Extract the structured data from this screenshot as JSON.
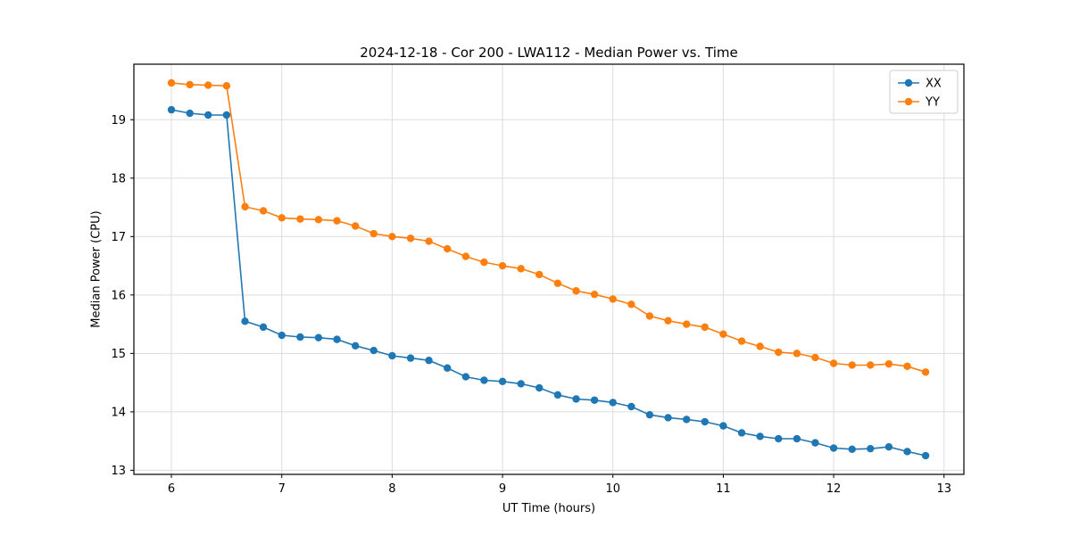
{
  "chart_data": {
    "type": "line",
    "title": "2024-12-18 - Cor 200 - LWA112 - Median Power vs. Time",
    "xlabel": "UT Time (hours)",
    "ylabel": "Median Power (CPU)",
    "x": [
      6.0,
      6.167,
      6.333,
      6.5,
      6.667,
      6.833,
      7.0,
      7.167,
      7.333,
      7.5,
      7.667,
      7.833,
      8.0,
      8.167,
      8.333,
      8.5,
      8.667,
      8.833,
      9.0,
      9.167,
      9.333,
      9.5,
      9.667,
      9.833,
      10.0,
      10.167,
      10.333,
      10.5,
      10.667,
      10.833,
      11.0,
      11.167,
      11.333,
      11.5,
      11.667,
      11.833,
      12.0,
      12.167,
      12.333,
      12.5,
      12.667,
      12.833
    ],
    "series": [
      {
        "name": "XX",
        "color": "#1f77b4",
        "values": [
          19.17,
          19.11,
          19.08,
          19.08,
          15.55,
          15.45,
          15.31,
          15.28,
          15.27,
          15.24,
          15.13,
          15.05,
          14.96,
          14.92,
          14.88,
          14.75,
          14.6,
          14.54,
          14.52,
          14.48,
          14.41,
          14.29,
          14.22,
          14.2,
          14.16,
          14.09,
          13.95,
          13.9,
          13.87,
          13.83,
          13.76,
          13.64,
          13.58,
          13.54,
          13.54,
          13.47,
          13.38,
          13.36,
          13.37,
          13.4,
          13.32,
          13.25
        ]
      },
      {
        "name": "YY",
        "color": "#ff7f0e",
        "values": [
          19.63,
          19.6,
          19.59,
          19.58,
          17.51,
          17.44,
          17.32,
          17.3,
          17.29,
          17.27,
          17.18,
          17.05,
          17.0,
          16.97,
          16.92,
          16.79,
          16.66,
          16.56,
          16.5,
          16.45,
          16.35,
          16.2,
          16.07,
          16.01,
          15.93,
          15.84,
          15.64,
          15.56,
          15.5,
          15.45,
          15.33,
          15.21,
          15.12,
          15.02,
          15.0,
          14.93,
          14.83,
          14.8,
          14.8,
          14.82,
          14.78,
          14.68
        ]
      }
    ],
    "xlim": [
      5.66,
      13.18
    ],
    "ylim": [
      12.93,
      19.95
    ],
    "xticks": [
      6,
      7,
      8,
      9,
      10,
      11,
      12,
      13
    ],
    "yticks": [
      13,
      14,
      15,
      16,
      17,
      18,
      19
    ],
    "grid": true,
    "legend": {
      "position": "upper right",
      "entries": [
        "XX",
        "YY"
      ]
    },
    "colors": {
      "grid": "#dddddd",
      "spine": "#000000",
      "background": "#ffffff"
    }
  }
}
